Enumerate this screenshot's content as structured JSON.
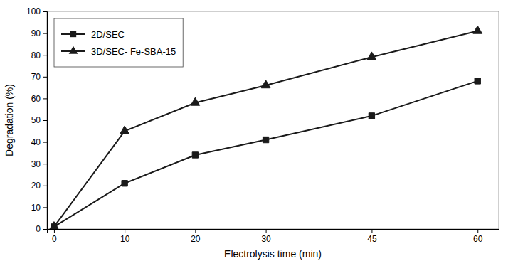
{
  "chart_data": {
    "type": "line",
    "x": [
      0,
      10,
      20,
      30,
      45,
      60
    ],
    "series": [
      {
        "name": "2D/SEC",
        "color": "#1a1a1a",
        "marker": "square",
        "values": [
          1,
          21,
          34,
          41,
          52,
          68
        ]
      },
      {
        "name": "3D/SEC- Fe-SBA-15",
        "color": "#1a1a1a",
        "marker": "triangle",
        "values": [
          1,
          45,
          58,
          66,
          79,
          91
        ]
      }
    ],
    "x_label": "Electrolysis time (min)",
    "y_label": "Degradation (%)",
    "xlim": [
      -1,
      63
    ],
    "ylim": [
      0,
      100
    ],
    "xticks": [
      0,
      10,
      20,
      30,
      45,
      60
    ],
    "yticks": [
      0,
      10,
      20,
      30,
      40,
      50,
      60,
      70,
      80,
      90,
      100
    ],
    "legend": "upper left"
  }
}
